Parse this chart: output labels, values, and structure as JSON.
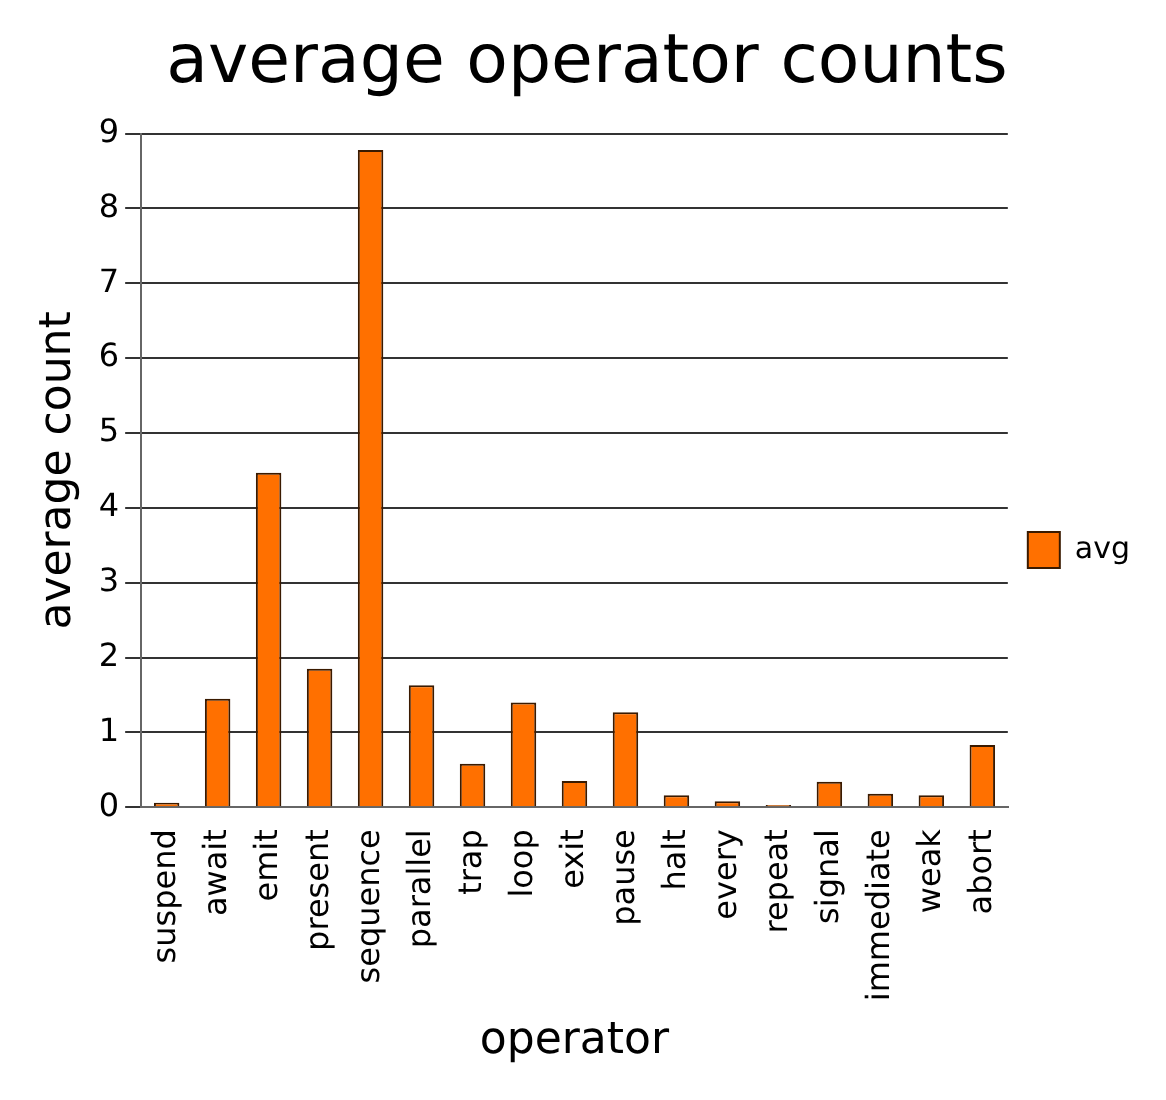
{
  "chart_data": {
    "type": "bar",
    "title": "average operator counts",
    "xlabel": "operator",
    "ylabel": "average count",
    "categories": [
      "suspend",
      "await",
      "emit",
      "present",
      "sequence",
      "parallel",
      "trap",
      "loop",
      "exit",
      "pause",
      "halt",
      "every",
      "repeat",
      "signal",
      "immediate",
      "weak",
      "abort"
    ],
    "series": [
      {
        "name": "avg",
        "color": "#ff7000",
        "values": [
          0.06,
          1.45,
          4.47,
          1.85,
          8.78,
          1.63,
          0.58,
          1.4,
          0.35,
          1.27,
          0.16,
          0.08,
          0.03,
          0.34,
          0.18,
          0.16,
          0.83
        ]
      }
    ],
    "ylim": [
      0,
      9
    ],
    "yticks": [
      0,
      1,
      2,
      3,
      4,
      5,
      6,
      7,
      8,
      9
    ],
    "grid": "y",
    "legend": "right"
  }
}
